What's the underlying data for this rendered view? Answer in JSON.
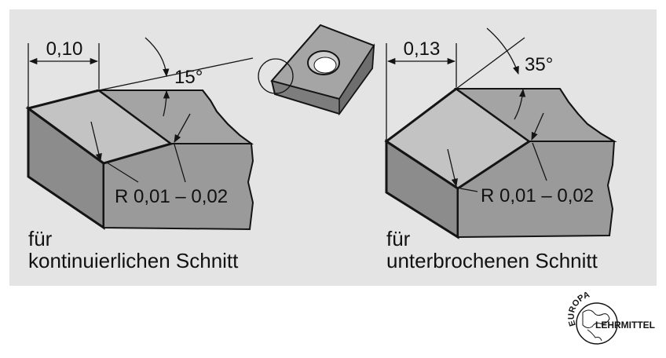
{
  "left": {
    "chamfer_width": "0,10",
    "angle": "15°",
    "radius": "R 0,01 – 0,02",
    "caption_line1": "für",
    "caption_line2": "kontinuierlichen Schnitt"
  },
  "right": {
    "chamfer_width": "0,13",
    "angle": "35°",
    "radius": "R 0,01 – 0,02",
    "caption_line1": "für",
    "caption_line2": "unterbrochenen Schnitt"
  },
  "logo": {
    "top_text": "EUROPA",
    "side_text": "LEHRMITTEL"
  },
  "colors": {
    "panel": "#e4e4e4",
    "face_dark": "#8e8e8e",
    "face_top": "#a5a5a5",
    "face_chamfer": "#c4c4c4",
    "line": "#141414"
  }
}
